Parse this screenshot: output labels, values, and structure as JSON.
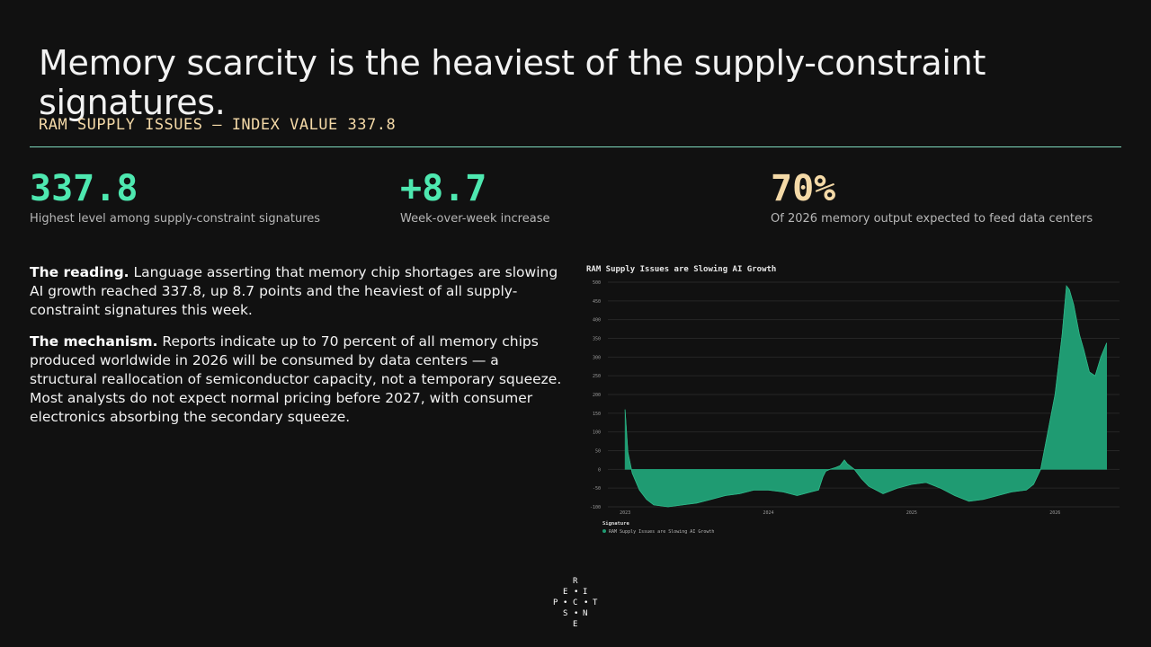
{
  "headline": "Memory scarcity is the heaviest of the supply-constraint signatures.",
  "kicker": "RAM SUPPLY ISSUES — INDEX VALUE 337.8",
  "stats": [
    {
      "value": "337.8",
      "label": "Highest level among supply-constraint signatures",
      "color": "#4ee8b0"
    },
    {
      "value": "+8.7",
      "label": "Week-over-week increase",
      "color": "#4ee8b0"
    },
    {
      "value": "70%",
      "label": "Of 2026 memory output expected to feed data centers",
      "color": "#f4d9a7"
    }
  ],
  "reading": {
    "lead": "The reading.",
    "text": " Language asserting that memory chip shortages are slowing AI growth reached 337.8, up 8.7 points and the heaviest of all supply-constraint signatures this week."
  },
  "mechanism": {
    "lead": "The mechanism.",
    "text": " Reports indicate up to 70 percent of all memory chips produced worldwide in 2026 will be consumed by data centers — a structural reallocation of semiconductor capacity, not a temporary squeeze. Most analysts do not expect normal pricing before 2027, with consumer electronics absorbing the secondary squeeze."
  },
  "logo": {
    "letters": [
      "R",
      "E",
      "I",
      "P",
      "C",
      "T",
      "S",
      "N",
      "E"
    ]
  },
  "chart_data": {
    "type": "area",
    "title": "RAM Supply Issues are Slowing AI Growth",
    "legend_title": "Signature",
    "legend_position": "bottom-left",
    "series": [
      {
        "name": "RAM Supply Issues are Slowing AI Growth",
        "color": "#1f9b72",
        "points": [
          [
            2023.0,
            160
          ],
          [
            2023.02,
            45
          ],
          [
            2023.05,
            -10
          ],
          [
            2023.1,
            -55
          ],
          [
            2023.15,
            -80
          ],
          [
            2023.2,
            -95
          ],
          [
            2023.3,
            -100
          ],
          [
            2023.4,
            -95
          ],
          [
            2023.5,
            -90
          ],
          [
            2023.6,
            -80
          ],
          [
            2023.7,
            -70
          ],
          [
            2023.8,
            -65
          ],
          [
            2023.9,
            -55
          ],
          [
            2024.0,
            -55
          ],
          [
            2024.1,
            -60
          ],
          [
            2024.2,
            -70
          ],
          [
            2024.3,
            -60
          ],
          [
            2024.35,
            -55
          ],
          [
            2024.38,
            -20
          ],
          [
            2024.4,
            -5
          ],
          [
            2024.43,
            0
          ],
          [
            2024.47,
            5
          ],
          [
            2024.5,
            10
          ],
          [
            2024.53,
            25
          ],
          [
            2024.55,
            15
          ],
          [
            2024.6,
            0
          ],
          [
            2024.65,
            -25
          ],
          [
            2024.7,
            -45
          ],
          [
            2024.8,
            -65
          ],
          [
            2024.9,
            -50
          ],
          [
            2025.0,
            -40
          ],
          [
            2025.1,
            -35
          ],
          [
            2025.2,
            -50
          ],
          [
            2025.3,
            -70
          ],
          [
            2025.4,
            -85
          ],
          [
            2025.5,
            -80
          ],
          [
            2025.6,
            -70
          ],
          [
            2025.7,
            -60
          ],
          [
            2025.8,
            -55
          ],
          [
            2025.85,
            -40
          ],
          [
            2025.9,
            0
          ],
          [
            2025.95,
            100
          ],
          [
            2026.0,
            200
          ],
          [
            2026.05,
            360
          ],
          [
            2026.08,
            490
          ],
          [
            2026.1,
            480
          ],
          [
            2026.13,
            440
          ],
          [
            2026.17,
            360
          ],
          [
            2026.2,
            320
          ],
          [
            2026.24,
            260
          ],
          [
            2026.28,
            250
          ],
          [
            2026.32,
            300
          ],
          [
            2026.36,
            337.8
          ]
        ]
      }
    ],
    "xlim": [
      2022.88,
      2026.45
    ],
    "ylim": [
      -100,
      500
    ],
    "x_ticks": [
      {
        "v": 2023,
        "label": "2023"
      },
      {
        "v": 2024,
        "label": "2024"
      },
      {
        "v": 2025,
        "label": "2025"
      },
      {
        "v": 2026,
        "label": "2026"
      }
    ],
    "y_ticks": [
      -100,
      -50,
      0,
      50,
      100,
      150,
      200,
      250,
      300,
      350,
      400,
      450,
      500
    ],
    "grid": true
  }
}
